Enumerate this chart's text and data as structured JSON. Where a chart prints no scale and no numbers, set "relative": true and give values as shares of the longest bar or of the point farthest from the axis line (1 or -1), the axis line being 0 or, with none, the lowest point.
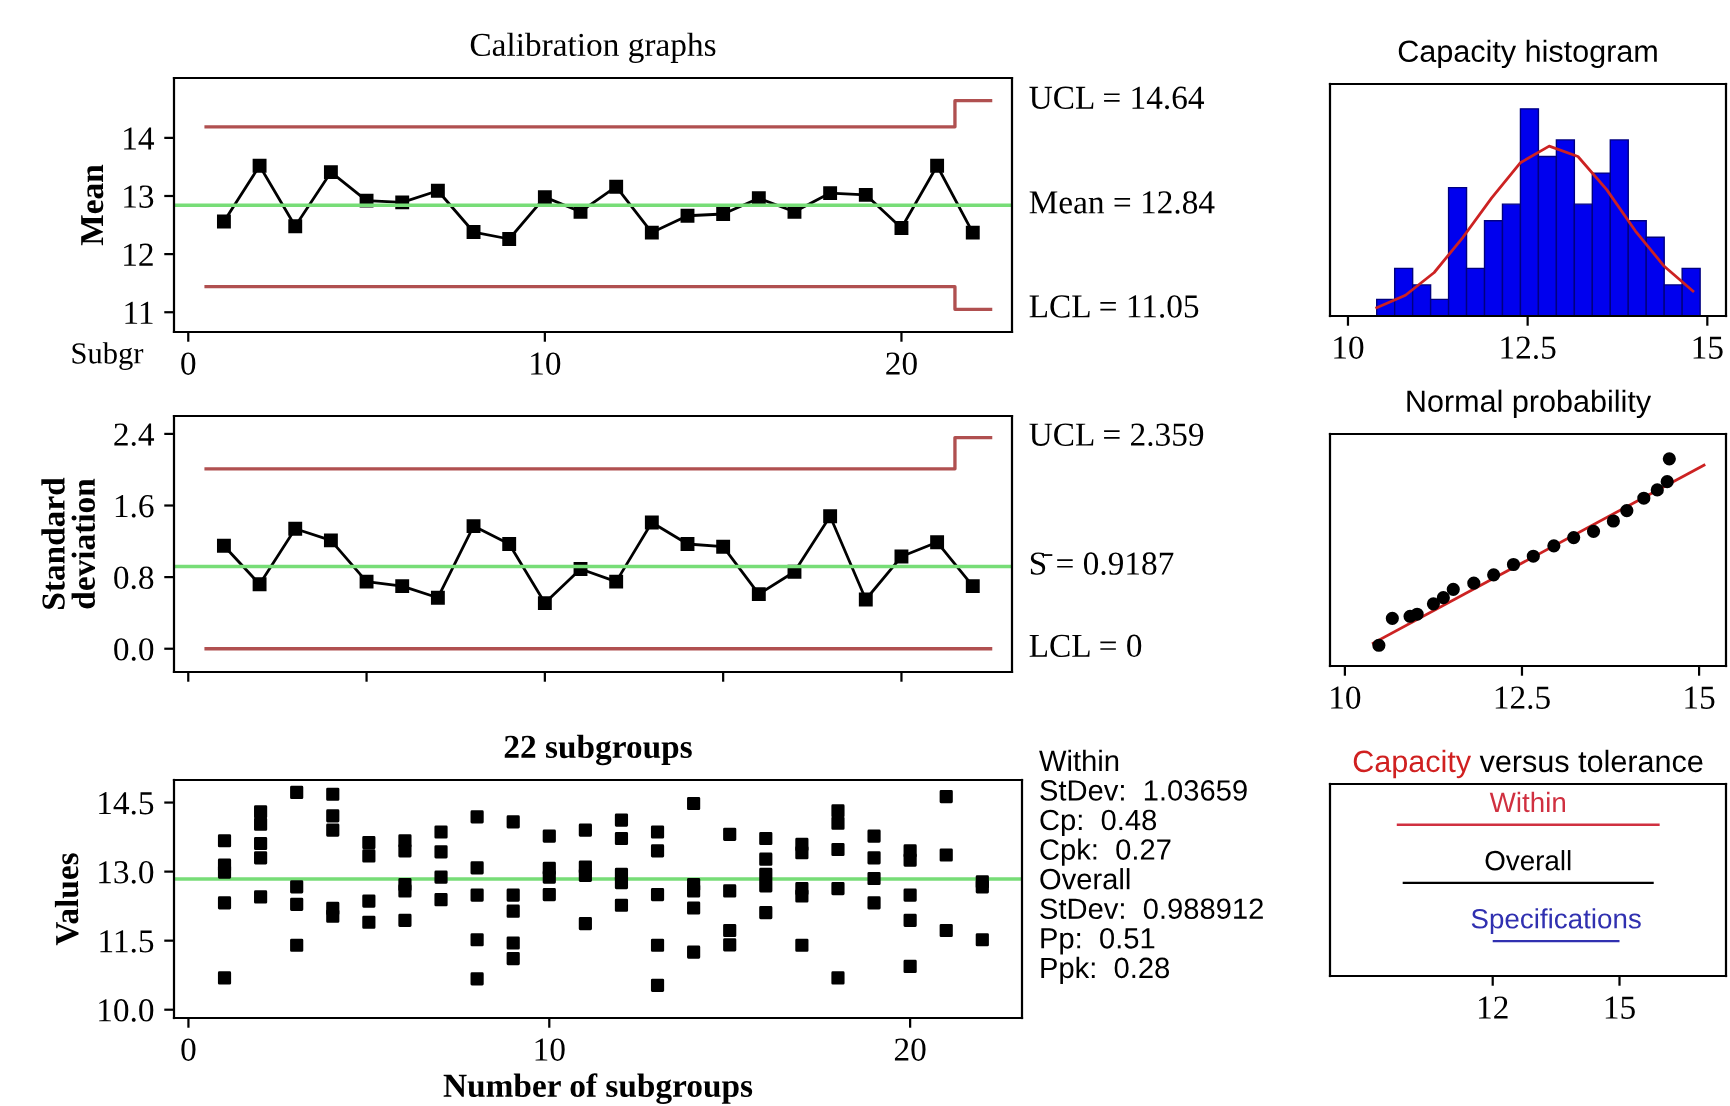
{
  "chart_data": [
    {
      "type": "line",
      "title": "Calibration graphs",
      "xlabel": "Subgr",
      "ylabel": "Mean",
      "xlim": [
        -0.4,
        23.1
      ],
      "xticks": [
        0,
        10,
        20
      ],
      "ylim": [
        10.66,
        15.03
      ],
      "yticks": [
        11,
        12,
        13,
        14
      ],
      "series": [
        {
          "color": "#000000",
          "marker": "square",
          "x": [
            1,
            2,
            3,
            4,
            5,
            6,
            7,
            8,
            9,
            10,
            11,
            12,
            13,
            14,
            15,
            16,
            17,
            18,
            19,
            20,
            21,
            22
          ],
          "values": [
            12.56,
            13.52,
            12.48,
            13.41,
            12.92,
            12.89,
            13.09,
            12.38,
            12.26,
            12.98,
            12.73,
            13.16,
            12.37,
            12.66,
            12.69,
            12.96,
            12.73,
            13.05,
            13.02,
            12.45,
            13.52,
            12.37
          ]
        },
        {
          "type": "step",
          "name": "UCL = 14.64",
          "color": "#b05050",
          "x": [
            0.5,
            21.5,
            22.5
          ],
          "values": [
            14.19,
            14.64,
            14.64
          ]
        },
        {
          "type": "step",
          "name": "LCL = 11.05",
          "color": "#b05050",
          "x": [
            0.5,
            21.5,
            22.5
          ],
          "values": [
            11.44,
            11.05,
            11.05
          ]
        }
      ],
      "ref_lines": [
        {
          "axis": "y",
          "value": 12.84,
          "label": "Mean = 12.84",
          "color": "#77dd77"
        }
      ]
    },
    {
      "type": "line",
      "ylabel": "Standard\ndeviation",
      "xlim": [
        -0.4,
        23.1
      ],
      "ylim": [
        -0.26,
        2.6
      ],
      "yticks": [
        {
          "value": 0,
          "label": "0.0"
        },
        0.8,
        1.6,
        2.4
      ],
      "tick_labels": "y",
      "series": [
        {
          "color": "#000000",
          "marker": "square",
          "x": [
            1,
            2,
            3,
            4,
            5,
            6,
            7,
            8,
            9,
            10,
            11,
            12,
            13,
            14,
            15,
            16,
            17,
            18,
            19,
            20,
            21,
            22
          ],
          "values": [
            1.15,
            0.72,
            1.34,
            1.21,
            0.75,
            0.7,
            0.57,
            1.37,
            1.17,
            0.51,
            0.89,
            0.75,
            1.41,
            1.17,
            1.14,
            0.61,
            0.86,
            1.48,
            0.55,
            1.03,
            1.19,
            0.7
          ]
        },
        {
          "type": "step",
          "name": "UCL = 2.359",
          "color": "#b05050",
          "x": [
            0.5,
            21.5,
            22.5
          ],
          "values": [
            2.01,
            2.359,
            2.359
          ]
        },
        {
          "type": "step",
          "name": "LCL = 0",
          "color": "#b05050",
          "x": [
            0.5,
            21.5,
            22.5
          ],
          "values": [
            0,
            0,
            0
          ]
        }
      ],
      "ref_lines": [
        {
          "axis": "y",
          "value": 0.9187,
          "label": "S̄ = 0.9187",
          "color": "#77dd77"
        }
      ]
    },
    {
      "type": "scatter",
      "title": "22 subgroups",
      "xlabel": "Number of subgroups",
      "ylabel": "Values",
      "xlim": [
        -0.4,
        23.1
      ],
      "xticks": [
        0,
        10,
        20
      ],
      "ylim": [
        9.82,
        14.99
      ],
      "yticks": [
        {
          "value": 10,
          "label": "10.0"
        },
        11.5,
        {
          "value": 13,
          "label": "13.0"
        },
        14.5
      ],
      "series": [
        {
          "color": "#000000",
          "marker": "square",
          "x": [
            1,
            1,
            1,
            1,
            1,
            2,
            2,
            2,
            2,
            2,
            3,
            3,
            3,
            3,
            4,
            4,
            4,
            4,
            4,
            5,
            5,
            5,
            5,
            6,
            6,
            6,
            6,
            6,
            7,
            7,
            7,
            7,
            8,
            8,
            8,
            8,
            8,
            9,
            9,
            9,
            9,
            9,
            10,
            10,
            10,
            10,
            11,
            11,
            11,
            11,
            12,
            12,
            12,
            12,
            12,
            13,
            13,
            13,
            13,
            13,
            14,
            14,
            14,
            14,
            14,
            15,
            15,
            15,
            15,
            16,
            16,
            16,
            16,
            16,
            17,
            17,
            17,
            17,
            17,
            18,
            18,
            18,
            18,
            18,
            19,
            19,
            19,
            19,
            20,
            20,
            20,
            20,
            20,
            21,
            21,
            21,
            22,
            22,
            22
          ],
          "values": [
            13.67,
            13.14,
            12.99,
            12.32,
            10.69,
            14.3,
            14.03,
            13.61,
            13.3,
            12.45,
            14.72,
            12.67,
            12.29,
            11.4,
            14.68,
            14.21,
            13.9,
            12.2,
            12.03,
            13.63,
            13.34,
            12.36,
            11.9,
            13.67,
            13.45,
            12.72,
            12.58,
            11.94,
            13.86,
            13.43,
            12.88,
            12.39,
            14.19,
            13.08,
            12.49,
            11.52,
            10.67,
            14.08,
            12.49,
            12.14,
            11.45,
            11.11,
            13.77,
            13.07,
            12.88,
            12.5,
            13.9,
            13.1,
            12.92,
            11.87,
            14.12,
            13.72,
            12.94,
            12.76,
            12.27,
            13.86,
            13.45,
            12.5,
            11.4,
            10.53,
            14.48,
            12.72,
            12.58,
            12.21,
            11.25,
            13.81,
            12.58,
            11.72,
            11.41,
            13.72,
            13.27,
            12.94,
            12.69,
            12.11,
            13.59,
            13.41,
            12.63,
            12.47,
            11.4,
            14.32,
            14.05,
            13.48,
            12.63,
            10.69,
            13.77,
            13.3,
            12.85,
            12.32,
            13.45,
            13.25,
            12.49,
            11.94,
            10.94,
            14.63,
            13.36,
            11.72,
            12.78,
            12.67,
            11.52
          ]
        }
      ],
      "ref_lines": [
        {
          "axis": "y",
          "value": 12.84,
          "color": "#77dd77"
        }
      ],
      "annotations": [
        "Within",
        "StDev:  1.03659",
        "Cp:  0.48",
        "Cpk:  0.27",
        "Overall",
        "StDev:  0.988912",
        "Pp:  0.51",
        "Ppk:  0.28"
      ]
    },
    {
      "type": "histogram",
      "title": "Capacity histogram",
      "relative": true,
      "color": "#0000ee",
      "xlim": [
        9.75,
        15.26
      ],
      "xticks": [
        10,
        12.5,
        15
      ],
      "bins": [
        10.4,
        10.65,
        10.9,
        11.15,
        11.4,
        11.65,
        11.9,
        12.15,
        12.4,
        12.65,
        12.9,
        13.15,
        13.4,
        13.65,
        13.9,
        14.15,
        14.4,
        14.65,
        14.9
      ],
      "values": [
        0.08,
        0.23,
        0.15,
        0.08,
        0.62,
        0.23,
        0.46,
        0.54,
        1,
        0.77,
        0.85,
        0.54,
        0.69,
        0.85,
        0.46,
        0.38,
        0.15,
        0.23
      ],
      "series": [
        {
          "type": "line",
          "color": "#cc2222",
          "x": [
            10.4,
            10.8,
            11.2,
            11.6,
            12.0,
            12.4,
            12.8,
            13.2,
            13.6,
            14.0,
            14.4,
            14.8
          ],
          "values": [
            0.04,
            0.1,
            0.21,
            0.38,
            0.57,
            0.74,
            0.82,
            0.77,
            0.61,
            0.41,
            0.24,
            0.12
          ]
        }
      ]
    },
    {
      "type": "scatter",
      "title": "Normal probability",
      "relative": true,
      "xlim": [
        9.79,
        15.38
      ],
      "xticks": [
        10,
        12.5,
        15
      ],
      "series": [
        {
          "color": "#000000",
          "marker": "circle",
          "x": [
            10.48,
            10.67,
            10.92,
            11.02,
            11.25,
            11.39,
            11.53,
            11.82,
            12.1,
            12.38,
            12.66,
            12.95,
            13.23,
            13.51,
            13.79,
            13.98,
            14.22,
            14.41,
            14.55,
            14.58
          ],
          "values": [
            0.1,
            0.23,
            0.24,
            0.25,
            0.3,
            0.33,
            0.37,
            0.4,
            0.44,
            0.49,
            0.53,
            0.58,
            0.62,
            0.65,
            0.7,
            0.75,
            0.81,
            0.85,
            0.89,
            1
          ]
        },
        {
          "type": "line",
          "color": "#cc2222",
          "x": [
            10.4,
            15.07
          ],
          "values": [
            0.11,
            0.97
          ]
        }
      ]
    },
    {
      "type": "bar",
      "orientation": "horizontal",
      "title": "Capacity versus tolerance",
      "categories": [
        "Within",
        "Overall",
        "Specifications"
      ],
      "base": [
        9.73,
        9.87,
        12
      ],
      "values": [
        6.22,
        5.94,
        3
      ],
      "colors": [
        "#d03040",
        "#000000",
        "#3030b0"
      ],
      "xlim": [
        8.15,
        17.52
      ],
      "xticks": [
        12,
        15
      ]
    }
  ]
}
